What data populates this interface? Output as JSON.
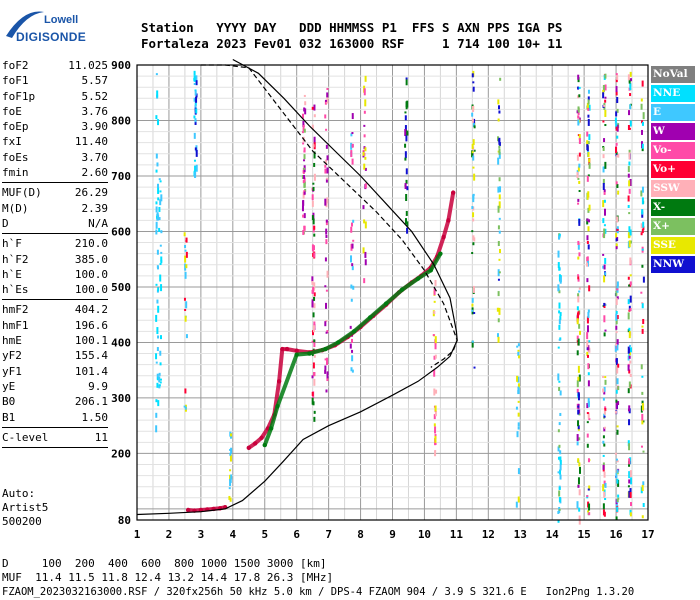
{
  "logo": {
    "top": "Lowell",
    "bottom": "DIGISONDE"
  },
  "header": {
    "line1": "Station   YYYY DAY   DDD HHMMSS P1  FFS S AXN PPS IGA PS",
    "line2": "Fortaleza 2023 Fev01 032 163000 RSF     1 714 100 10+ 11"
  },
  "params": [
    {
      "name": "foF2",
      "value": "11.025"
    },
    {
      "name": "foF1",
      "value": "5.57"
    },
    {
      "name": "foF1p",
      "value": "5.52"
    },
    {
      "name": "foE",
      "value": "3.76"
    },
    {
      "name": "foEp",
      "value": "3.90"
    },
    {
      "name": "fxI",
      "value": "11.40"
    },
    {
      "name": "foEs",
      "value": "3.70"
    },
    {
      "name": "fmin",
      "value": "2.60"
    },
    {
      "divider": true
    },
    {
      "name": "MUF(D)",
      "value": "26.29"
    },
    {
      "name": "M(D)",
      "value": "2.39"
    },
    {
      "name": "D",
      "value": "N/A"
    },
    {
      "divider": true
    },
    {
      "name": "h`F",
      "value": "210.0"
    },
    {
      "name": "h`F2",
      "value": "385.0"
    },
    {
      "name": "h`E",
      "value": "100.0"
    },
    {
      "name": "h`Es",
      "value": "100.0"
    },
    {
      "divider": true
    },
    {
      "name": "hmF2",
      "value": "404.2"
    },
    {
      "name": "hmF1",
      "value": "196.6"
    },
    {
      "name": "hmE",
      "value": "100.1"
    },
    {
      "name": "yF2",
      "value": "155.4"
    },
    {
      "name": "yF1",
      "value": "101.4"
    },
    {
      "name": "yE",
      "value": "9.9"
    },
    {
      "name": "B0",
      "value": "206.1"
    },
    {
      "name": "B1",
      "value": "1.50"
    },
    {
      "divider": true
    },
    {
      "name": "C-level",
      "value": "11"
    },
    {
      "divider": true
    }
  ],
  "auto": {
    "label": "Auto:",
    "name": "Artist5",
    "version": "500200"
  },
  "legend": [
    {
      "label": "NoVal",
      "color": "#7f7f7f"
    },
    {
      "label": "NNE",
      "color": "#00e0ff"
    },
    {
      "label": "E",
      "color": "#3fc8ff"
    },
    {
      "label": "W",
      "color": "#a000b0"
    },
    {
      "label": "Vo-",
      "color": "#ff4aa8"
    },
    {
      "label": "Vo+",
      "color": "#ff0033"
    },
    {
      "label": "SSW",
      "color": "#ffb0b8"
    },
    {
      "label": "X-",
      "color": "#007a10"
    },
    {
      "label": "X+",
      "color": "#7cc060"
    },
    {
      "label": "SSE",
      "color": "#e8e800"
    },
    {
      "label": "NNW",
      "color": "#1010d0"
    }
  ],
  "footer": {
    "line1": "D     100  200  400  600  800 1000 1500 3000 [km]",
    "line2": "MUF  11.4 11.5 11.8 12.4 13.2 14.4 17.8 26.3 [MHz]",
    "line3": "FZAOM_2023032163000.RSF / 320fx256h 50 kHz 5.0 km / DPS-4 FZAOM 904 / 3.9 S 321.6 E   Ion2Png 1.3.20"
  },
  "chart_data": {
    "type": "scatter",
    "title": "",
    "xlabel": "",
    "ylabel": "",
    "xlim": [
      1,
      17
    ],
    "ylim": [
      80,
      900
    ],
    "x_ticks": [
      1,
      2,
      3,
      4,
      5,
      6,
      7,
      8,
      9,
      10,
      11,
      12,
      13,
      14,
      15,
      16,
      17
    ],
    "y_ticks": [
      80,
      200,
      300,
      400,
      500,
      600,
      700,
      800,
      900
    ],
    "grid": true,
    "series": [
      {
        "name": "",
        "style": "echo-trace",
        "color": "#c8003c",
        "x": [
          2.6,
          2.8,
          3.0,
          3.2,
          3.4,
          3.6,
          3.76
        ],
        "y": [
          98,
          97,
          98,
          99,
          100,
          101,
          103
        ]
      },
      {
        "name": "",
        "style": "echo-trace",
        "color": "#c8003c",
        "x": [
          4.5,
          4.7,
          4.9,
          5.1,
          5.3,
          5.45,
          5.55,
          5.7,
          6.0,
          6.4,
          6.8,
          7.2,
          7.6,
          8.0,
          8.4,
          8.8,
          9.2,
          9.6,
          9.9,
          10.2,
          10.4,
          10.6,
          10.75,
          10.9
        ],
        "y": [
          210,
          218,
          228,
          245,
          270,
          330,
          388,
          388,
          385,
          382,
          386,
          395,
          410,
          428,
          448,
          468,
          490,
          508,
          520,
          535,
          555,
          590,
          620,
          670
        ]
      },
      {
        "name": "",
        "style": "echo-trace",
        "color": "#007a10",
        "x": [
          5.0,
          5.2,
          5.4,
          6.0,
          6.4,
          6.9,
          7.3,
          7.8,
          8.3,
          8.8,
          9.3,
          9.8,
          10.2,
          10.5
        ],
        "y": [
          215,
          245,
          285,
          378,
          380,
          388,
          400,
          420,
          445,
          470,
          495,
          515,
          530,
          560
        ]
      },
      {
        "name": "",
        "style": "line",
        "color": "#000000",
        "x": [
          1.0,
          2.0,
          3.0,
          3.76,
          4.3,
          5.0,
          5.57,
          6.2,
          7.0,
          8.0,
          9.0,
          9.8,
          10.4,
          10.8,
          11.025
        ],
        "y": [
          90,
          92,
          95,
          100,
          115,
          150,
          185,
          225,
          250,
          275,
          305,
          330,
          355,
          375,
          404
        ]
      },
      {
        "name": "",
        "style": "line",
        "color": "#000000",
        "x": [
          11.025,
          11.0,
          10.8,
          10.3,
          9.6,
          8.8,
          8.0,
          7.2,
          6.4,
          5.6,
          4.8,
          4.0
        ],
        "y": [
          404,
          420,
          480,
          540,
          600,
          650,
          700,
          745,
          790,
          840,
          885,
          910
        ]
      },
      {
        "name": "",
        "style": "dashed",
        "color": "#000000",
        "x": [
          3.0,
          3.76,
          4.5,
          5.5,
          6.5,
          7.5,
          8.5,
          9.3,
          10.0,
          10.6,
          11.025,
          10.9,
          10.6,
          10.2
        ],
        "y": [
          900,
          900,
          895,
          820,
          745,
          690,
          635,
          585,
          530,
          470,
          404,
          385,
          370,
          355
        ]
      }
    ]
  }
}
